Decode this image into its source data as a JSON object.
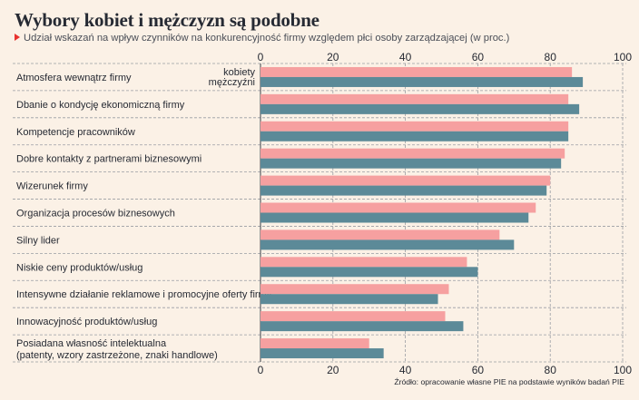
{
  "title": "Wybory kobiet i mężczyzn są podobne",
  "subtitle": "Udział wskazań na wpływ czynników na konkurencyjność firmy względem płci osoby zarządzającej (w proc.)",
  "source": "Źródło: opracowanie własne PIE na podstawie wyników badań PIE",
  "colors": {
    "kobiety": "#f6a0a0",
    "mezczyzni": "#5c8a98",
    "accent": "#e8312e",
    "background": "#fbf1e6"
  },
  "chart_data": {
    "type": "bar",
    "orientation": "horizontal",
    "xlim": [
      0,
      100
    ],
    "ticks": [
      0,
      20,
      40,
      60,
      80,
      100
    ],
    "tick_labels_position": "top and bottom",
    "grid": true,
    "legend_placement": "inline next to first category",
    "categories": [
      [
        "Atmosfera wewnątrz firmy"
      ],
      [
        "Dbanie o kondycję ekonomiczną firmy"
      ],
      [
        "Kompetencje pracowników"
      ],
      [
        "Dobre kontakty z partnerami biznesowymi"
      ],
      [
        "Wizerunek firmy"
      ],
      [
        "Organizacja procesów biznesowych"
      ],
      [
        "Silny lider"
      ],
      [
        "Niskie ceny produktów/usług"
      ],
      [
        "Intensywne działanie reklamowe i promocyjne oferty firmy"
      ],
      [
        "Innowacyjność produktów/usług"
      ],
      [
        "Posiadana własność intelektualna",
        "(patenty, wzory zastrzeżone, znaki handlowe)"
      ]
    ],
    "series": [
      {
        "name": "kobiety",
        "values": [
          86,
          85,
          85,
          84,
          80,
          76,
          66,
          57,
          52,
          51,
          30
        ]
      },
      {
        "name": "mężczyźni",
        "values": [
          89,
          88,
          85,
          83,
          79,
          74,
          70,
          60,
          49,
          56,
          34
        ]
      }
    ]
  }
}
